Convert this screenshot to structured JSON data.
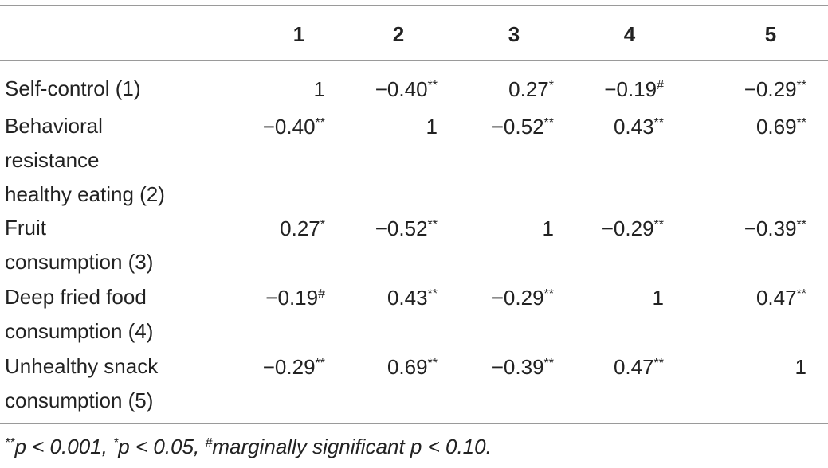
{
  "table": {
    "columns": [
      "1",
      "2",
      "3",
      "4",
      "5"
    ],
    "rows": [
      {
        "label_lines": [
          "Self-control (1)"
        ],
        "cells": [
          {
            "v": "1",
            "sup": ""
          },
          {
            "v": "−0.40",
            "sup": "**"
          },
          {
            "v": "0.27",
            "sup": "*"
          },
          {
            "v": "−0.19",
            "sup": "#"
          },
          {
            "v": "−0.29",
            "sup": "**"
          }
        ]
      },
      {
        "label_lines": [
          "Behavioral",
          "resistance",
          "healthy eating (2)"
        ],
        "cells": [
          {
            "v": "−0.40",
            "sup": "**"
          },
          {
            "v": "1",
            "sup": ""
          },
          {
            "v": "−0.52",
            "sup": "**"
          },
          {
            "v": "0.43",
            "sup": "**"
          },
          {
            "v": "0.69",
            "sup": "**"
          }
        ]
      },
      {
        "label_lines": [
          "Fruit",
          "consumption (3)"
        ],
        "cells": [
          {
            "v": "0.27",
            "sup": "*"
          },
          {
            "v": "−0.52",
            "sup": "**"
          },
          {
            "v": "1",
            "sup": ""
          },
          {
            "v": "−0.29",
            "sup": "**"
          },
          {
            "v": "−0.39",
            "sup": "**"
          }
        ]
      },
      {
        "label_lines": [
          "Deep fried food",
          "consumption (4)"
        ],
        "cells": [
          {
            "v": "−0.19",
            "sup": "#"
          },
          {
            "v": "0.43",
            "sup": "**"
          },
          {
            "v": "−0.29",
            "sup": "**"
          },
          {
            "v": "1",
            "sup": ""
          },
          {
            "v": "0.47",
            "sup": "**"
          }
        ]
      },
      {
        "label_lines": [
          "Unhealthy snack",
          "consumption (5)"
        ],
        "cells": [
          {
            "v": "−0.29",
            "sup": "**"
          },
          {
            "v": "0.69",
            "sup": "**"
          },
          {
            "v": "−0.39",
            "sup": "**"
          },
          {
            "v": "0.47",
            "sup": "**"
          },
          {
            "v": "1",
            "sup": ""
          }
        ]
      }
    ]
  },
  "footnote": {
    "part1_sup": "**",
    "part1": "p < 0.001, ",
    "part2_sup": "*",
    "part2": "p < 0.05, ",
    "part3_sup": "#",
    "part3": "marginally significant p < 0.10."
  }
}
